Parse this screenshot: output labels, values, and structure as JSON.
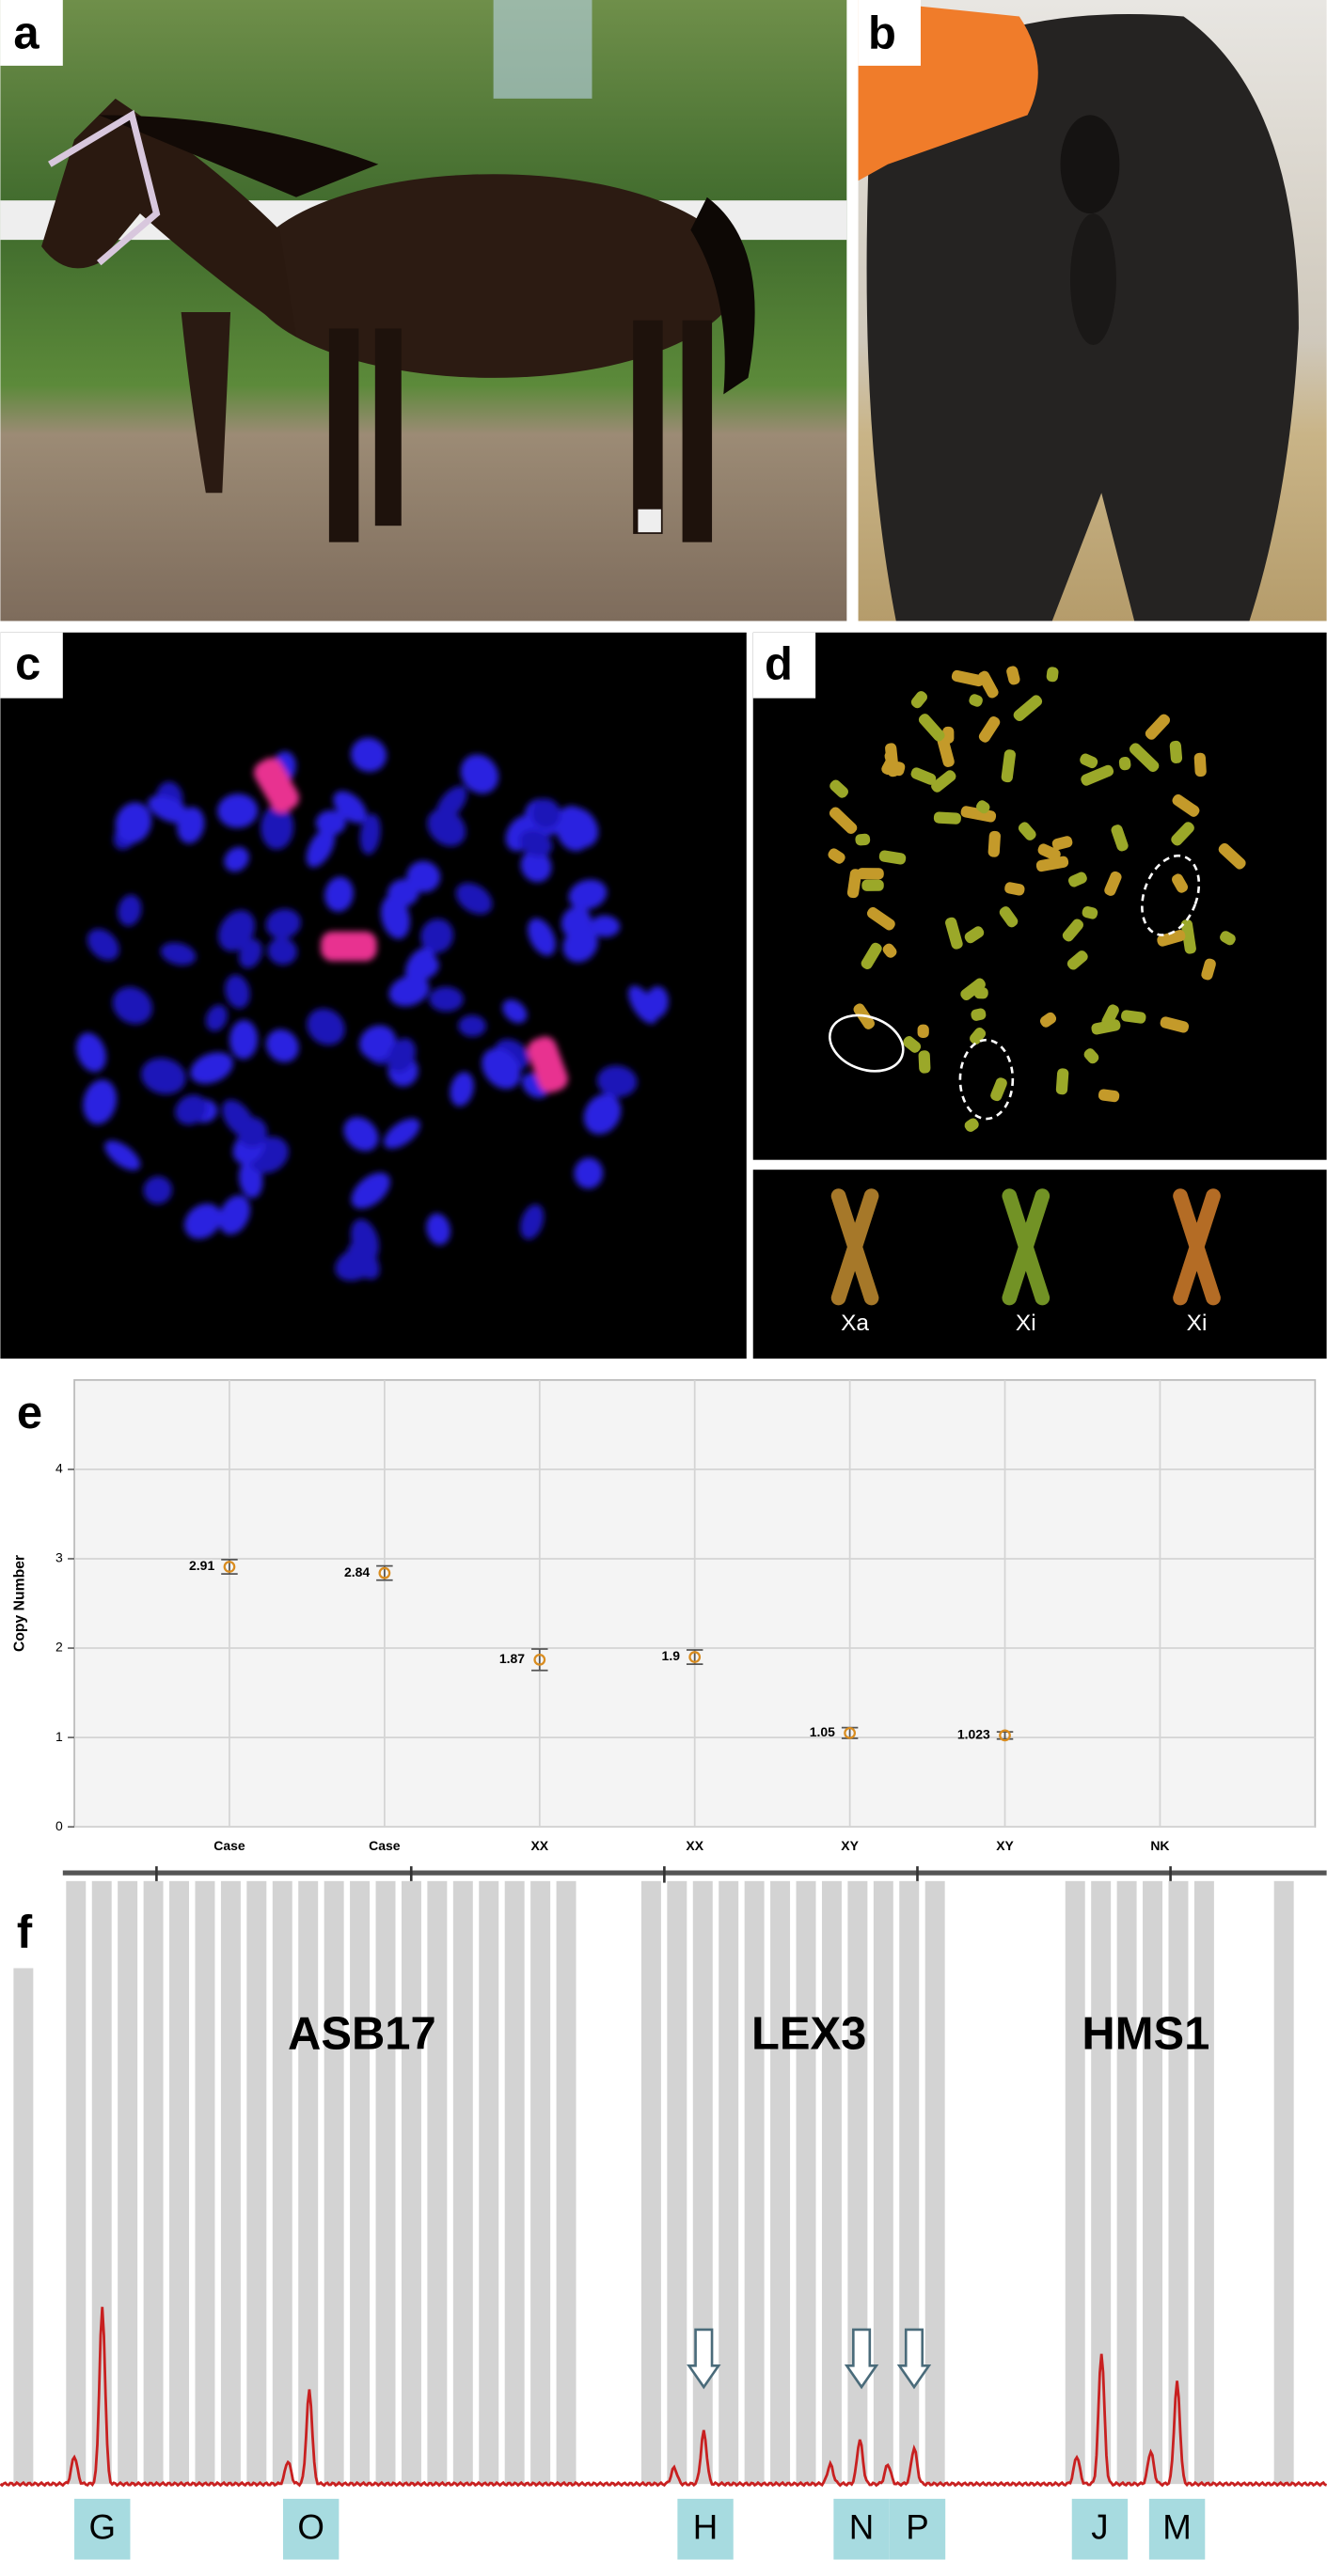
{
  "panels": {
    "labels": [
      "a",
      "b",
      "c",
      "d",
      "e",
      "f"
    ]
  },
  "panel_d": {
    "inset_labels": [
      "Xa",
      "Xi",
      "Xi"
    ]
  },
  "chart_data": {
    "type": "errorbar",
    "y_label": "Copy Number",
    "categories": [
      "Case",
      "Case",
      "XX",
      "XX",
      "XY",
      "XY",
      "NK"
    ],
    "values": [
      2.91,
      2.84,
      1.87,
      1.9,
      1.05,
      1.023,
      null
    ],
    "errors": [
      0.08,
      0.08,
      0.12,
      0.08,
      0.06,
      0.04,
      null
    ],
    "color": "#d98c1f",
    "ylim": [
      0,
      5
    ],
    "yticks": [
      0,
      1,
      2,
      3,
      4
    ],
    "grid": true
  },
  "panel_f": {
    "genes": [
      "ASB17",
      "LEX3",
      "HMS1"
    ],
    "peaks": [
      "G",
      "O",
      "H",
      "N",
      "P",
      "J",
      "M"
    ]
  }
}
